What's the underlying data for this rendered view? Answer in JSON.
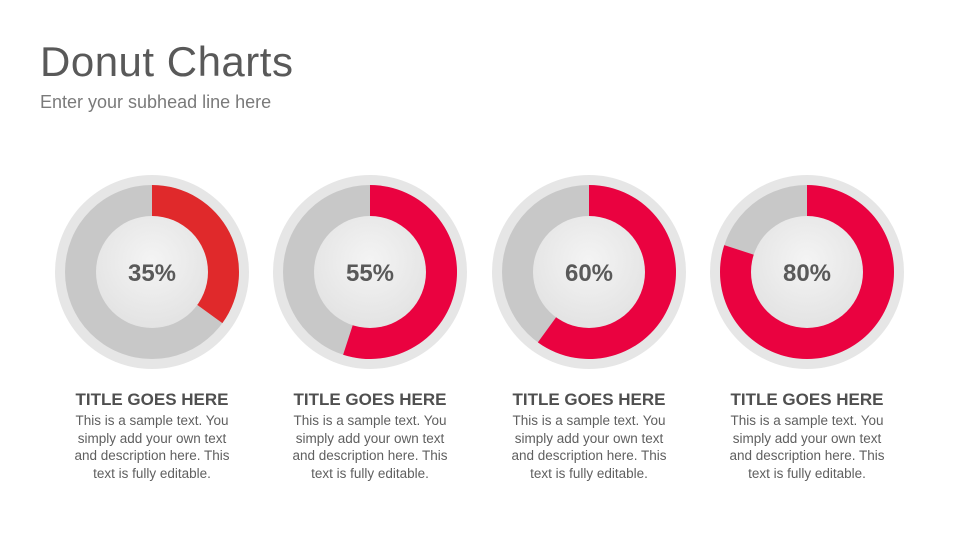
{
  "header": {
    "title": "Donut Charts",
    "subhead": "Enter your subhead line here"
  },
  "colors": {
    "track": "#c8c8c8",
    "outer_ring": "#e6e6e6",
    "center": "#ececec",
    "label": "#595959",
    "accent_first": "#e0292b",
    "accent": "#ea0240"
  },
  "chart_data": [
    {
      "type": "pie",
      "value": 35,
      "label": "35%",
      "title": "TITLE GOES HERE",
      "description": "This is a sample text. You simply add your own text and description here. This text is fully editable."
    },
    {
      "type": "pie",
      "value": 55,
      "label": "55%",
      "title": "TITLE GOES HERE",
      "description": "This is a sample text. You simply add your own text and description here. This text is fully editable."
    },
    {
      "type": "pie",
      "value": 60,
      "label": "60%",
      "title": "TITLE GOES HERE",
      "description": "This is a sample text. You simply add your own text and description here. This text is fully editable."
    },
    {
      "type": "pie",
      "value": 80,
      "label": "80%",
      "title": "TITLE GOES HERE",
      "description": "This is a sample text. You simply add your own text and description here. This text is fully editable."
    }
  ]
}
